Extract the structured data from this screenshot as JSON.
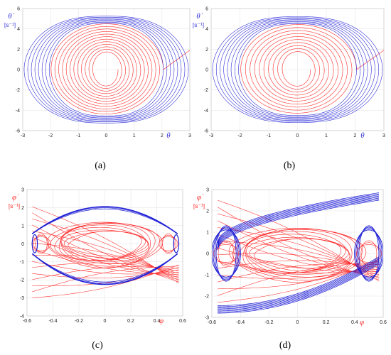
{
  "colors": {
    "red": "#ff2a2a",
    "blue": "#1f1fd6",
    "grid": "#e6e6e6"
  },
  "captions": [
    "(a)",
    "(b)",
    "(c)",
    "(d)"
  ],
  "chart_data": [
    {
      "id": "a",
      "type": "line",
      "xlabel": "θ",
      "ylabel": "θ̇",
      "yunit": "[s⁻¹]",
      "label_color": "#3b3bd9",
      "xlim": [
        -3,
        3
      ],
      "ylim": [
        -6,
        6
      ],
      "xticks": [
        -3,
        -2,
        -1,
        0,
        1,
        2,
        3
      ],
      "yticks": [
        -6,
        -4,
        -2,
        0,
        2,
        4,
        6
      ],
      "grid": true,
      "series": [
        {
          "color": "#ff2a2a",
          "kind": "expanding-spiral",
          "x_amplitude": [
            0.42,
            2.05
          ],
          "y_amplitude": [
            1.55,
            4.55
          ],
          "turns": 12,
          "tail_to": [
            3.0,
            1.9
          ]
        },
        {
          "color": "#1f1fd6",
          "kind": "separatrix-band",
          "x_amplitude": [
            2.05,
            2.95
          ],
          "y_amplitude": [
            4.55,
            5.25
          ],
          "turns": 8
        }
      ]
    },
    {
      "id": "b",
      "type": "line",
      "xlabel": "θ",
      "ylabel": "θ̇",
      "yunit": "[s⁻¹]",
      "label_color": "#3b3bd9",
      "xlim": [
        -3,
        3
      ],
      "ylim": [
        -6,
        6
      ],
      "xticks": [
        -3,
        -2,
        -1,
        0,
        1,
        2,
        3
      ],
      "yticks": [
        -6,
        -4,
        -2,
        0,
        2,
        4,
        6
      ],
      "grid": true,
      "series": [
        {
          "color": "#ff2a2a",
          "kind": "expanding-spiral",
          "x_amplitude": [
            0.45,
            2.05
          ],
          "y_amplitude": [
            1.55,
            4.5
          ],
          "turns": 10,
          "tail_to": [
            3.0,
            1.9
          ]
        },
        {
          "color": "#1f1fd6",
          "kind": "separatrix-band",
          "x_amplitude": [
            2.05,
            2.95
          ],
          "y_amplitude": [
            4.5,
            5.2
          ],
          "turns": 8
        }
      ]
    },
    {
      "id": "c",
      "type": "line",
      "xlabel": "φ",
      "ylabel": "φ̇",
      "yunit": "[s⁻¹]",
      "label_color": "#ff2a2a",
      "xlim": [
        -0.6,
        0.6
      ],
      "ylim": [
        -4,
        3
      ],
      "xticks": [
        -0.6,
        -0.4,
        -0.2,
        0,
        0.2,
        0.4,
        0.6
      ],
      "yticks": [
        -4,
        -3,
        -2,
        -1,
        0,
        1,
        2,
        3
      ],
      "grid": true,
      "series": [
        {
          "color": "#ff2a2a",
          "kind": "chaotic-bundle",
          "description_values": {
            "center_ellipse": [
              0,
              0,
              0.37,
              1.05
            ],
            "side_loops": [
              [
                -0.49,
                0,
                0.045,
                0.55
              ],
              [
                0.49,
                0,
                0.045,
                0.55
              ]
            ],
            "span_x": [
              -0.56,
              0.57
            ],
            "span_y": [
              -3.0,
              2.05
            ]
          }
        },
        {
          "color": "#1f1fd6",
          "kind": "separatrix",
          "description_values": {
            "upper_peak": [
              0.0,
              2.05
            ],
            "lower_trough": [
              0.0,
              -2.25
            ],
            "half_width": 0.56,
            "side_bulges": [
              [
                -0.54,
                0
              ],
              [
                0.55,
                0
              ]
            ]
          }
        }
      ]
    },
    {
      "id": "d",
      "type": "line",
      "xlabel": "φ",
      "ylabel": "φ̇",
      "yunit": "[s⁻¹]",
      "label_color": "#ff2a2a",
      "xlim": [
        -0.6,
        0.6
      ],
      "ylim": [
        -3,
        3
      ],
      "xticks": [
        -0.6,
        -0.4,
        -0.2,
        0,
        0.2,
        0.4,
        0.6
      ],
      "yticks": [
        -3,
        -2,
        -1,
        0,
        1,
        2,
        3
      ],
      "grid": true,
      "series": [
        {
          "color": "#ff2a2a",
          "kind": "chaotic-bundle",
          "description_values": {
            "center_ellipse": [
              0,
              0,
              0.4,
              1.05
            ],
            "side_loops": [
              [
                -0.5,
                0,
                0.055,
                0.6
              ],
              [
                0.5,
                0,
                0.055,
                0.6
              ]
            ],
            "span_x": [
              -0.56,
              0.57
            ],
            "span_y": [
              -2.3,
              2.5
            ]
          }
        },
        {
          "color": "#1f1fd6",
          "kind": "rotational-band",
          "description_values": {
            "top_curves": [
              [
                -0.56,
                0.5
              ],
              [
                0.57,
                2.85
              ]
            ],
            "bottom_curves": [
              [
                -0.56,
                -2.8
              ],
              [
                0.57,
                -0.5
              ]
            ],
            "side_lenses": [
              [
                -0.5,
                0,
                0.07,
                1.3
              ],
              [
                0.5,
                0,
                0.07,
                1.3
              ]
            ]
          }
        }
      ]
    }
  ]
}
